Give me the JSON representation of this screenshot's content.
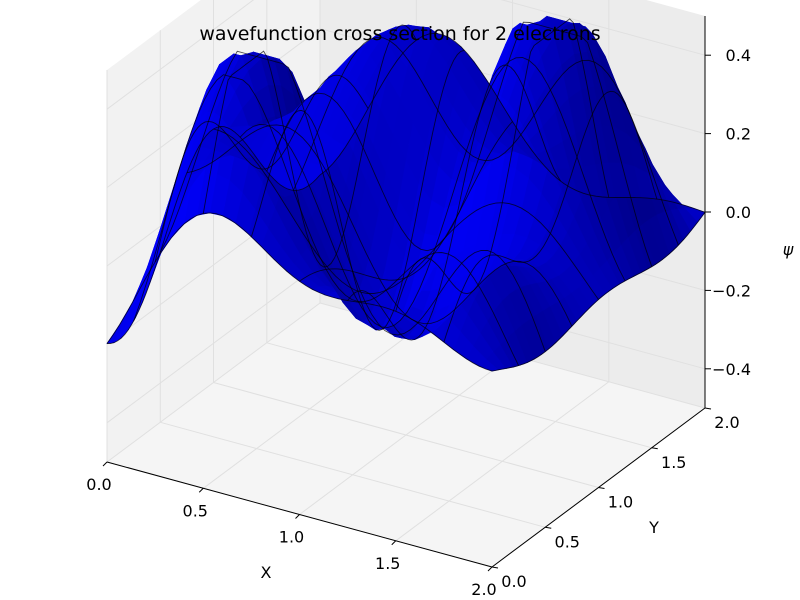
{
  "chart_data": {
    "type": "surface3d",
    "title": "wavefunction cross section for 2 electrons",
    "xlabel": "X",
    "ylabel": "Y",
    "zlabel": "ψ",
    "xlim": [
      0.0,
      2.0
    ],
    "ylim": [
      0.0,
      2.0
    ],
    "zlim": [
      -0.5,
      0.5
    ],
    "x_ticks": [
      "0.0",
      "0.5",
      "1.0",
      "1.5",
      "2.0"
    ],
    "y_ticks": [
      "0.0",
      "0.5",
      "1.0",
      "1.5",
      "2.0"
    ],
    "z_ticks": [
      "−0.4",
      "−0.2",
      "0.0",
      "0.2",
      "0.4"
    ],
    "x_tick_values": [
      0.0,
      0.5,
      1.0,
      1.5,
      2.0
    ],
    "y_tick_values": [
      0.0,
      0.5,
      1.0,
      1.5,
      2.0
    ],
    "z_tick_values": [
      -0.4,
      -0.2,
      0.0,
      0.2,
      0.4
    ],
    "surface_color": "#0000ff",
    "grid": true
  }
}
